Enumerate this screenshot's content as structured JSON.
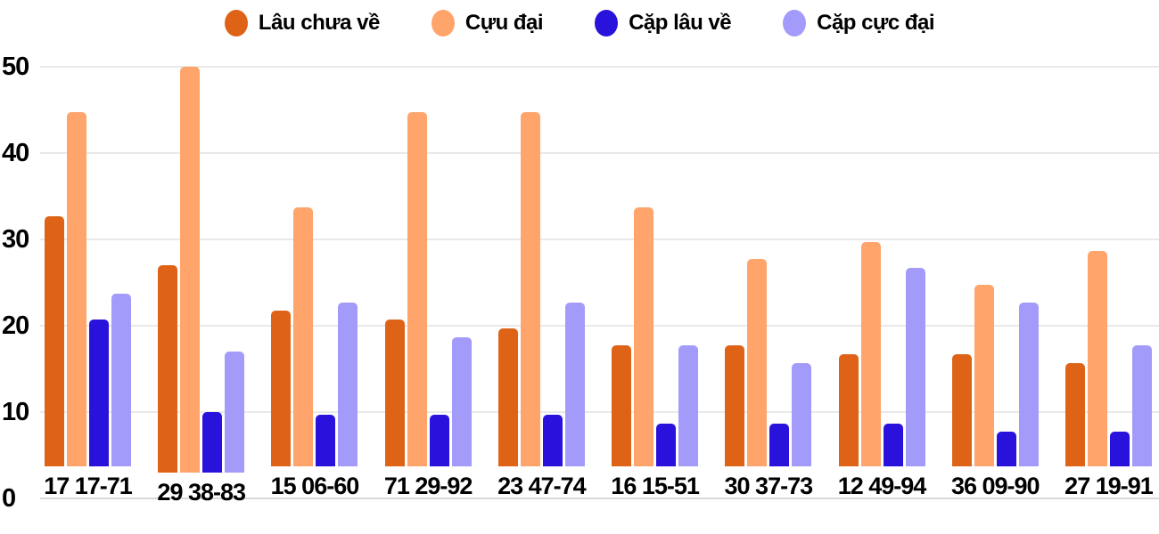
{
  "chart_data": {
    "type": "bar",
    "title": "",
    "xlabel": "",
    "ylabel": "",
    "categories": [
      "17 17-71",
      "29 38-83",
      "15 06-60",
      "71 29-92",
      "23 47-74",
      "16 15-51",
      "30 37-73",
      "12 49-94",
      "36 09-90",
      "27 19-91"
    ],
    "series": [
      {
        "name": "Lâu chưa về",
        "color": "#de6317",
        "values": [
          29,
          24,
          18,
          17,
          16,
          14,
          14,
          13,
          13,
          12
        ]
      },
      {
        "name": "Cựu đại",
        "color": "#ffa46a",
        "values": [
          41,
          47,
          30,
          41,
          41,
          30,
          24,
          26,
          21,
          25
        ]
      },
      {
        "name": "Cặp lâu về",
        "color": "#2a12dd",
        "values": [
          17,
          7,
          6,
          6,
          6,
          5,
          5,
          5,
          4,
          4
        ]
      },
      {
        "name": "Cặp cực đại",
        "color": "#a39bfa",
        "values": [
          20,
          14,
          19,
          15,
          19,
          14,
          12,
          23,
          19,
          14
        ]
      }
    ],
    "ylim": [
      0,
      50
    ],
    "yticks": [
      0,
      10,
      20,
      30,
      40,
      50
    ],
    "grid": true,
    "legend_position": "top"
  },
  "colors": {
    "background": "#ffffff",
    "gridline": "#e9e9e9",
    "baseline": "#d8d8d8",
    "axis_text": "#000000"
  }
}
